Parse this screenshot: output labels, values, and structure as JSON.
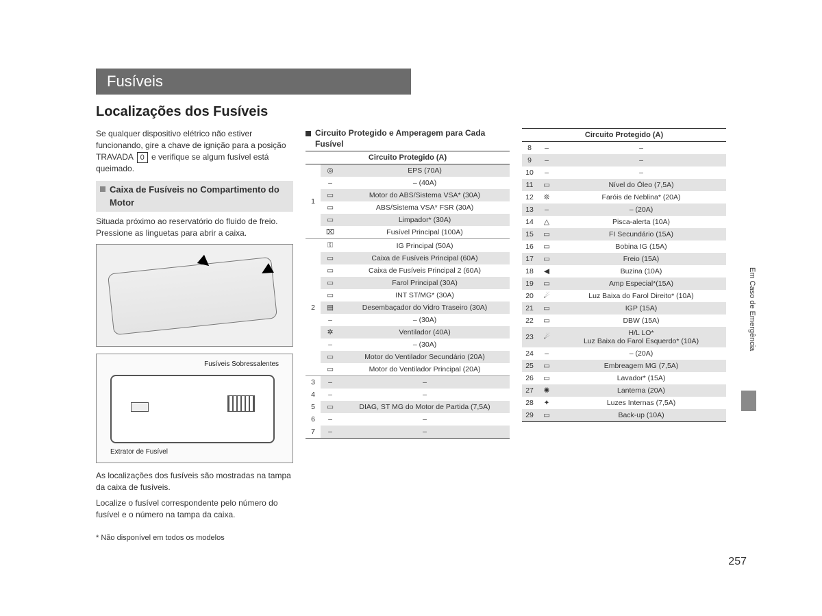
{
  "tab": "Fusíveis",
  "title": "Localizações dos Fusíveis",
  "intro_a": "Se qualquer dispositivo elétrico não estiver funcionando, gire a chave de ignição para a posição TRAVADA ",
  "intro_key": "0",
  "intro_b": " e verifique se algum fusível está queimado.",
  "subhead": "Caixa de Fusíveis no Compartimento do Motor",
  "desc": "Situada próximo ao reservatório do fluido de freio. Pressione as linguetas para abrir a caixa.",
  "fig2_label_a": "Fusíveis Sobressalentes",
  "fig2_label_b": "Extrator de Fusível",
  "caption_a": "As localizações dos fusíveis são mostradas na tampa da caixa de fusíveis.",
  "caption_b": "Localize o fusível correspondente pelo número do fusível e o número na tampa da caixa.",
  "footnote": "* Não disponível em todos os modelos",
  "table_title": "Circuito Protegido e Amperagem para Cada Fusível",
  "table_header": "Circuito Protegido (A)",
  "sidetab": "Em Caso de Emergência",
  "pagenum": "257",
  "icons": {
    "steer": "◎",
    "dash": "–",
    "fuse": "▭",
    "batt": "⌧",
    "key": "⚿",
    "defog": "▤",
    "fan": "✲",
    "horn": "◀",
    "lightR": "☄",
    "lightL": "☄",
    "lamp": "✺",
    "interior": "✦",
    "warn": "△",
    "fog": "❊"
  },
  "rows_mid": [
    {
      "g": "1",
      "i": "steer",
      "t": "EPS (70A)",
      "s": 1
    },
    {
      "g": "",
      "i": "dash",
      "t": "– (40A)",
      "s": 0
    },
    {
      "g": "",
      "i": "fuse",
      "t": "Motor do ABS/Sistema VSA* (30A)",
      "s": 1
    },
    {
      "g": "",
      "i": "fuse",
      "t": "ABS/Sistema VSA* FSR (30A)",
      "s": 0
    },
    {
      "g": "",
      "i": "fuse",
      "t": "Limpador* (30A)",
      "s": 1
    },
    {
      "g": "",
      "i": "batt",
      "t": "Fusível Principal (100A)",
      "s": 0
    },
    {
      "g": "2",
      "i": "key",
      "t": "IG Principal (50A)",
      "s": 0,
      "top": 1
    },
    {
      "g": "",
      "i": "fuse",
      "t": "Caixa de Fusíveis Principal (60A)",
      "s": 1
    },
    {
      "g": "",
      "i": "fuse",
      "t": "Caixa de Fusíveis Principal 2 (60A)",
      "s": 0
    },
    {
      "g": "",
      "i": "fuse",
      "t": "Farol Principal (30A)",
      "s": 1
    },
    {
      "g": "",
      "i": "fuse",
      "t": "INT ST/MG* (30A)",
      "s": 0
    },
    {
      "g": "",
      "i": "defog",
      "t": "Desembaçador do Vidro Traseiro (30A)",
      "s": 1
    },
    {
      "g": "",
      "i": "dash",
      "t": "– (30A)",
      "s": 0
    },
    {
      "g": "",
      "i": "fan",
      "t": "Ventilador (40A)",
      "s": 1
    },
    {
      "g": "",
      "i": "dash",
      "t": "– (30A)",
      "s": 0
    },
    {
      "g": "",
      "i": "fuse",
      "t": "Motor do Ventilador Secundário (20A)",
      "s": 1
    },
    {
      "g": "",
      "i": "fuse",
      "t": "Motor do Ventilador Principal (20A)",
      "s": 0
    },
    {
      "g": "3",
      "i": "dash",
      "t": "–",
      "s": 1,
      "top": 1
    },
    {
      "g": "4",
      "i": "dash",
      "t": "–",
      "s": 0
    },
    {
      "g": "5",
      "i": "fuse",
      "t": "DIAG, ST MG do Motor de Partida (7,5A)",
      "s": 1
    },
    {
      "g": "6",
      "i": "dash",
      "t": "–",
      "s": 0
    },
    {
      "g": "7",
      "i": "dash",
      "t": "–",
      "s": 1
    }
  ],
  "rows_right": [
    {
      "n": "8",
      "i": "dash",
      "t": "–",
      "s": 0
    },
    {
      "n": "9",
      "i": "dash",
      "t": "–",
      "s": 1
    },
    {
      "n": "10",
      "i": "dash",
      "t": "–",
      "s": 0
    },
    {
      "n": "11",
      "i": "fuse",
      "t": "Nível do Óleo (7,5A)",
      "s": 1
    },
    {
      "n": "12",
      "i": "fog",
      "t": "Faróis de Neblina* (20A)",
      "s": 0
    },
    {
      "n": "13",
      "i": "dash",
      "t": "– (20A)",
      "s": 1
    },
    {
      "n": "14",
      "i": "warn",
      "t": "Pisca-alerta (10A)",
      "s": 0
    },
    {
      "n": "15",
      "i": "fuse",
      "t": "FI Secundário (15A)",
      "s": 1
    },
    {
      "n": "16",
      "i": "fuse",
      "t": "Bobina IG (15A)",
      "s": 0
    },
    {
      "n": "17",
      "i": "fuse",
      "t": "Freio (15A)",
      "s": 1
    },
    {
      "n": "18",
      "i": "horn",
      "t": "Buzina (10A)",
      "s": 0
    },
    {
      "n": "19",
      "i": "fuse",
      "t": "Amp Especial*(15A)",
      "s": 1
    },
    {
      "n": "20",
      "i": "lightR",
      "t": "Luz Baixa do Farol Direito* (10A)",
      "s": 0
    },
    {
      "n": "21",
      "i": "fuse",
      "t": "IGP (15A)",
      "s": 1
    },
    {
      "n": "22",
      "i": "fuse",
      "t": "DBW (15A)",
      "s": 0
    },
    {
      "n": "23",
      "i": "lightL",
      "t": "H/L LO*\nLuz Baixa do Farol Esquerdo* (10A)",
      "s": 1
    },
    {
      "n": "24",
      "i": "dash",
      "t": "– (20A)",
      "s": 0
    },
    {
      "n": "25",
      "i": "fuse",
      "t": "Embreagem MG (7,5A)",
      "s": 1
    },
    {
      "n": "26",
      "i": "fuse",
      "t": "Lavador* (15A)",
      "s": 0
    },
    {
      "n": "27",
      "i": "lamp",
      "t": "Lanterna (20A)",
      "s": 1
    },
    {
      "n": "28",
      "i": "interior",
      "t": "Luzes Internas (7,5A)",
      "s": 0
    },
    {
      "n": "29",
      "i": "fuse",
      "t": "Back-up (10A)",
      "s": 1
    }
  ]
}
